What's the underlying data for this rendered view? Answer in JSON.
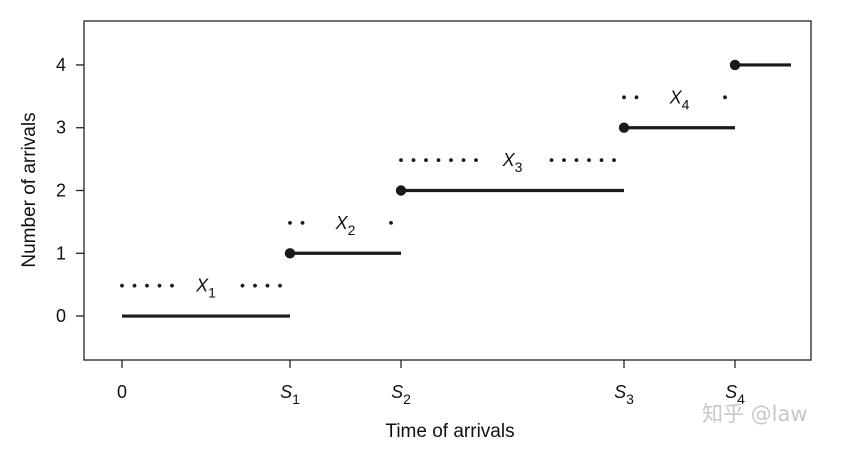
{
  "chart_data": {
    "type": "line",
    "subtype": "step",
    "xlabel": "Time of arrivals",
    "ylabel": "Number of arrivals",
    "ylim": [
      -0.7,
      4.7
    ],
    "yticks": [
      0,
      1,
      2,
      3,
      4
    ],
    "xticks": [
      {
        "base": "0",
        "sub": "",
        "t": 0
      },
      {
        "base": "S",
        "sub": "1",
        "t": 1
      },
      {
        "base": "S",
        "sub": "2",
        "t": 2
      },
      {
        "base": "S",
        "sub": "3",
        "t": 3
      },
      {
        "base": "S",
        "sub": "4",
        "t": 4
      }
    ],
    "steps": [
      {
        "level": 0,
        "from": "0",
        "to": "S1",
        "start_dot": false
      },
      {
        "level": 1,
        "from": "S1",
        "to": "S2",
        "start_dot": true
      },
      {
        "level": 2,
        "from": "S2",
        "to": "S3",
        "start_dot": true
      },
      {
        "level": 3,
        "from": "S3",
        "to": "S4",
        "start_dot": true
      },
      {
        "level": 4,
        "from": "S4",
        "to": "end",
        "start_dot": true
      }
    ],
    "interarrival_labels": [
      {
        "base": "X",
        "sub": "1",
        "from": "0",
        "to": "S1",
        "level": 0.5
      },
      {
        "base": "X",
        "sub": "2",
        "from": "S1",
        "to": "S2",
        "level": 1.5
      },
      {
        "base": "X",
        "sub": "3",
        "from": "S2",
        "to": "S3",
        "level": 2.5
      },
      {
        "base": "X",
        "sub": "4",
        "from": "S3",
        "to": "S4",
        "level": 3.5
      }
    ],
    "grid": false,
    "line_color": "#1a1a1a"
  },
  "watermark": "知乎 @law"
}
